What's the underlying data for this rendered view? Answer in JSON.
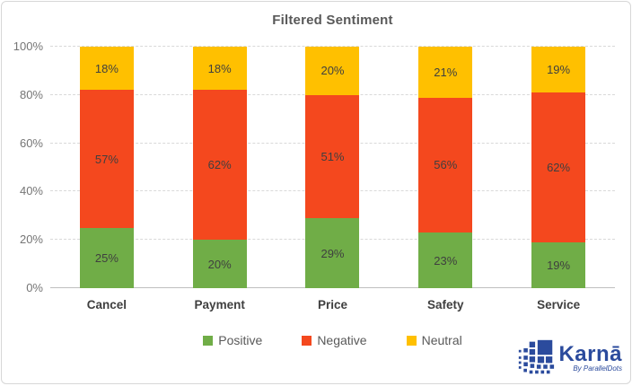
{
  "window": {
    "background": "#ffffff",
    "border_color": "#d7d7d7"
  },
  "chart_data": {
    "type": "bar",
    "stacked": true,
    "title": "Filtered Sentiment",
    "categories": [
      "Cancel",
      "Payment",
      "Price",
      "Safety",
      "Service"
    ],
    "series": [
      {
        "name": "Positive",
        "color": "#70AD47",
        "values": [
          25,
          20,
          29,
          23,
          19
        ]
      },
      {
        "name": "Negative",
        "color": "#F4481E",
        "values": [
          57,
          62,
          51,
          56,
          62
        ]
      },
      {
        "name": "Neutral",
        "color": "#FFC000",
        "values": [
          18,
          18,
          20,
          21,
          19
        ]
      }
    ],
    "data_label_suffix": "%",
    "xlabel": "",
    "ylabel": "",
    "ylim": [
      0,
      100
    ],
    "yticks": [
      0,
      20,
      40,
      60,
      80,
      100
    ],
    "ytick_labels": [
      "0%",
      "20%",
      "40%",
      "60%",
      "80%",
      "100%"
    ],
    "grid": "horizontal-dashed",
    "legend_position": "bottom-center"
  },
  "colors": {
    "title": "#595959",
    "axis_tick_labels": "#757575",
    "category_labels": "#3f3f3f",
    "data_labels": "#3f3f3f",
    "gridline": "#d9d9d9",
    "axis_line": "#bfbfbf",
    "legend_text": "#595959",
    "brand_blue": "#2B4B9D"
  },
  "branding": {
    "logo_text": "Karnā",
    "byline": "By ParallelDots"
  }
}
